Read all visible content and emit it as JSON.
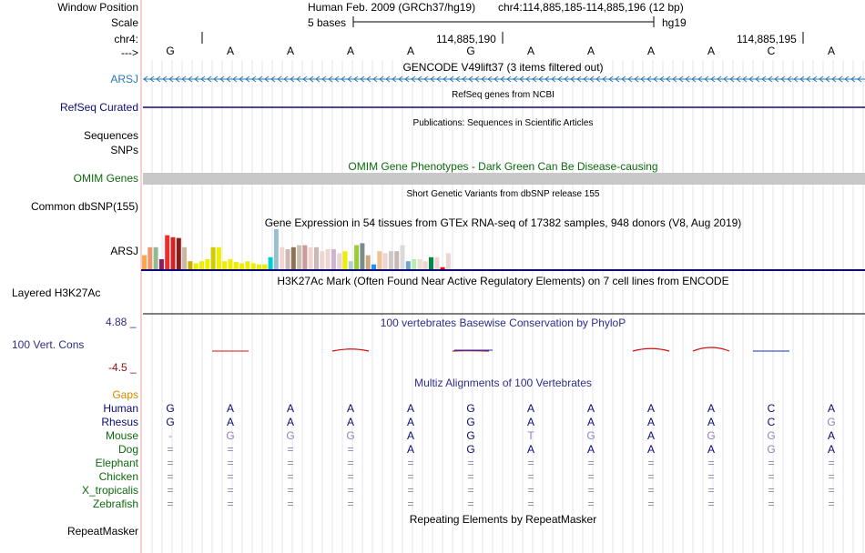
{
  "colors": {
    "arsj": "#2a7ab0",
    "refseq": "#0b0b72",
    "omim": "#0d6a0d",
    "gaps": "#d08a00",
    "navy": "#2e2e8a",
    "human": "#0b0b72",
    "mouse_dog": "#0d6a0d",
    "grey_gene": "#c8c8c8",
    "phylop_red": "#d01010",
    "phylop_blue": "#1030c0",
    "vertline": "#f3a0a0"
  },
  "labels": {
    "window_position": "Window Position",
    "scale": "Scale",
    "chr": "chr4:",
    "strand_arrow": "--->",
    "arsj": "ARSJ",
    "refseq_curated": "RefSeq Curated",
    "sequences": "Sequences",
    "snps": "SNPs",
    "omim_genes": "OMIM Genes",
    "common_dbsnp": "Common dbSNP(155)",
    "arsj2": "ARSJ",
    "layered_h3k27ac": "Layered H3K27Ac",
    "phylop_max": "4.88 _",
    "vert_cons": "100 Vert. Cons",
    "phylop_min": "-4.5 _",
    "gaps": "Gaps",
    "repeatmasker": "RepeatMasker"
  },
  "header": {
    "assembly": "Human Feb. 2009 (GRCh37/hg19)",
    "position": "chr4:114,885,185-114,885,196 (12 bp)",
    "scale_text": "5 bases",
    "db": "hg19",
    "coord1": "114,885,190",
    "coord2": "114,885,195"
  },
  "bases": [
    "G",
    "A",
    "A",
    "A",
    "A",
    "G",
    "A",
    "A",
    "A",
    "A",
    "C",
    "A"
  ],
  "tracks": {
    "gencode": "GENCODE V49lift37 (3 items filtered out)",
    "refseq": "RefSeq genes from NCBI",
    "publications": "Publications: Sequences in Scientific Articles",
    "omim": "OMIM Gene Phenotypes - Dark Green Can Be Disease-causing",
    "snp": "Short Genetic Variants from dbSNP release 155",
    "gtex": "Gene Expression in 54 tissues from GTEx RNA-seq of 17382 samples, 948 donors (V8, Aug 2019)",
    "h3k27ac": "H3K27Ac Mark (Often Found Near Active Regulatory Elements) on 7 cell lines from ENCODE",
    "phylop": "100 vertebrates Basewise Conservation by PhyloP",
    "multiz": "Multiz Alignments of 100 Vertebrates",
    "repeat": "Repeating Elements by RepeatMasker"
  },
  "gtex_values": [
    0.35,
    0.55,
    0.55,
    0.25,
    0.85,
    0.8,
    0.78,
    0.55,
    0.2,
    0.15,
    0.2,
    0.25,
    0.55,
    0.55,
    0.2,
    0.25,
    0.18,
    0.15,
    0.2,
    0.15,
    0.12,
    0.12,
    0.3,
    1.0,
    0.55,
    0.5,
    0.55,
    0.6,
    0.6,
    0.55,
    0.55,
    0.45,
    0.5,
    0.5,
    0.4,
    0.45,
    0.2,
    0.6,
    0.65,
    0.35,
    0.12,
    0.45,
    0.4,
    0.45,
    0.45,
    0.6,
    0.2,
    0.25,
    0.25,
    0.2,
    0.3,
    0.3,
    0.05,
    0.4
  ],
  "gtex_colors": [
    "#ffa54f",
    "#ee9572",
    "#8fbc8f",
    "#8b1c62",
    "#ee2c2c",
    "#cd2626",
    "#8b1a1a",
    "#cdb79e",
    "#cdad00",
    "#eeee00",
    "#eeee00",
    "#eeee00",
    "#cdcd00",
    "#eeee00",
    "#eeee00",
    "#eeee00",
    "#eeee00",
    "#eeee00",
    "#eeee00",
    "#eeee00",
    "#eeee00",
    "#eeee00",
    "#00cdcd",
    "#9ac0cd",
    "#eed5d2",
    "#cdb7b5",
    "#8b7355",
    "#cdc0b0",
    "#cd9b9b",
    "#eed5d2",
    "#cdb7b5",
    "#eed5d2",
    "#eed5d2",
    "#cdb5cd",
    "#eed5d2",
    "#eeee00",
    "#b4cdcd",
    "#9acd32",
    "#7a8b8b",
    "#cdaa7d",
    "#1e90ff",
    "#eec591",
    "#eed5d2",
    "#cdc9c9",
    "#cdb7b5",
    "#d9d9d9",
    "#6ca6cd",
    "#b4eeb4",
    "#eedfcc",
    "#eed5d2",
    "#008b45",
    "#eed5d2",
    "#ff0000",
    "#eed5d2"
  ],
  "species": [
    "Human",
    "Rhesus",
    "Mouse",
    "Dog",
    "Elephant",
    "Chicken",
    "X_tropicalis",
    "Zebrafish"
  ],
  "alignments": [
    [
      "G",
      "A",
      "A",
      "A",
      "A",
      "G",
      "A",
      "A",
      "A",
      "A",
      "C",
      "A"
    ],
    [
      "G",
      "A",
      "A",
      "A",
      "A",
      "G",
      "A",
      "A",
      "A",
      "A",
      "C",
      "G"
    ],
    [
      "-",
      "G",
      "G",
      "G",
      "A",
      "G",
      "T",
      "G",
      "A",
      "G",
      "G",
      "A"
    ],
    [
      "=",
      "=",
      "=",
      "=",
      "A",
      "G",
      "A",
      "A",
      "A",
      "A",
      "G",
      "A"
    ],
    [
      "=",
      "=",
      "=",
      "=",
      "=",
      "=",
      "=",
      "=",
      "=",
      "=",
      "=",
      "="
    ],
    [
      "=",
      "=",
      "=",
      "=",
      "=",
      "=",
      "=",
      "=",
      "=",
      "=",
      "=",
      "="
    ],
    [
      "=",
      "=",
      "=",
      "=",
      "=",
      "=",
      "=",
      "=",
      "=",
      "=",
      "=",
      "="
    ],
    [
      "=",
      "=",
      "=",
      "=",
      "=",
      "=",
      "=",
      "=",
      "=",
      "=",
      "=",
      "="
    ]
  ],
  "phylop_values": [
    0,
    -0.3,
    0,
    0.9,
    0,
    0.15,
    0,
    0,
    1.1,
    1.6,
    -0.3,
    0
  ]
}
